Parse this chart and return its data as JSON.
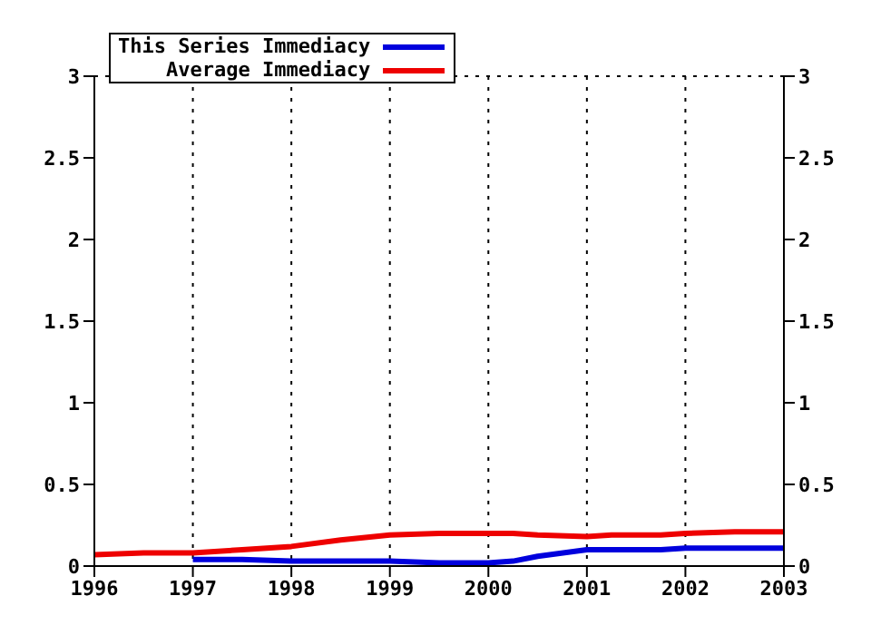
{
  "chart_data": {
    "type": "line",
    "x": [
      1996,
      1996.5,
      1997,
      1997.5,
      1998,
      1998.5,
      1999,
      1999.5,
      2000,
      2000.25,
      2000.5,
      2001,
      2001.25,
      2001.75,
      2002,
      2002.5,
      2003
    ],
    "series": [
      {
        "name": "This Series Immediacy",
        "color": "#0000dd",
        "values": [
          null,
          null,
          0.04,
          0.04,
          0.03,
          0.03,
          0.03,
          0.02,
          0.02,
          0.03,
          0.06,
          0.1,
          0.1,
          0.1,
          0.11,
          0.11,
          0.11
        ]
      },
      {
        "name": "Average Immediacy",
        "color": "#ee0000",
        "values": [
          0.07,
          0.08,
          0.08,
          0.1,
          0.12,
          0.16,
          0.19,
          0.2,
          0.2,
          0.2,
          0.19,
          0.18,
          0.19,
          0.19,
          0.2,
          0.21,
          0.21
        ]
      }
    ],
    "xlim": [
      1996,
      2003
    ],
    "xticks": [
      1996,
      1997,
      1998,
      1999,
      2000,
      2001,
      2002,
      2003
    ],
    "ylim": [
      0,
      3
    ],
    "yticks": [
      0,
      0.5,
      1,
      1.5,
      2,
      2.5,
      3
    ],
    "y2lim": [
      0,
      3
    ],
    "y2ticks": [
      0,
      0.5,
      1,
      1.5,
      2,
      2.5,
      3
    ],
    "grid": true,
    "legend": "top left",
    "marker": "none",
    "line_style": "solid"
  }
}
